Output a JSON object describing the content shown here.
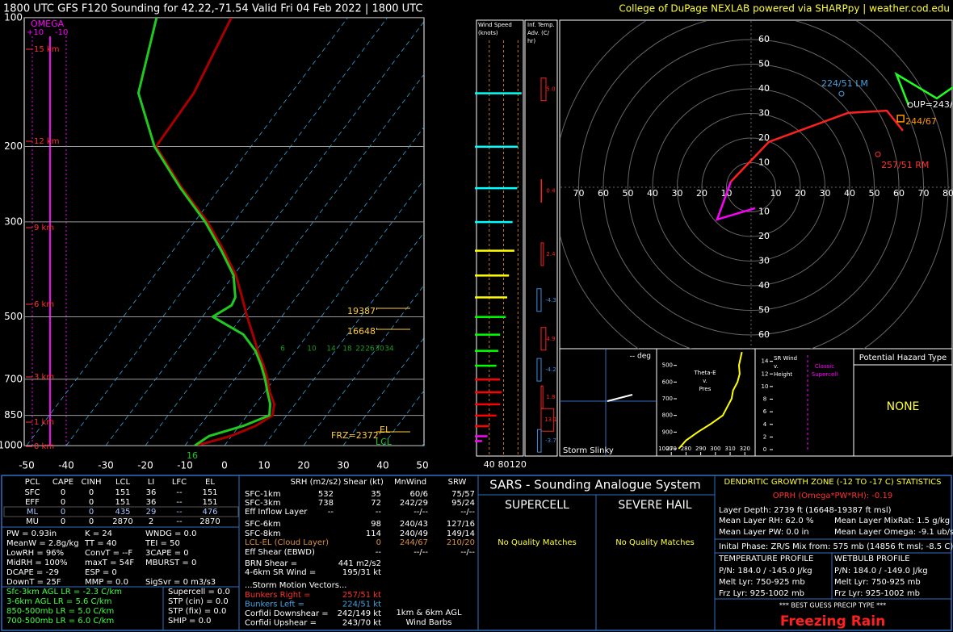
{
  "header": {
    "title": "1800 UTC GFS F120 Sounding for 42.22,-71.54 Valid  Fri 04 Feb 2022 | 1800 UTC",
    "credit": "College of DuPage NEXLAB powered via SHARPpy | weather.cod.edu"
  },
  "skewt": {
    "type": "skewt",
    "plim": [
      100,
      1000
    ],
    "pressure_ticks": [
      100,
      200,
      300,
      500,
      700,
      850,
      1000
    ],
    "tlim": [
      -50,
      50
    ],
    "temperature_ticks": [
      -50,
      -40,
      -30,
      -20,
      -10,
      0,
      10,
      20,
      30,
      40,
      50
    ],
    "omega_label": "OMEGA",
    "omega_ticks": [
      "+10",
      "-10"
    ],
    "height_labels": [
      "15 km",
      "12 km",
      "9 km",
      "6 km",
      "3 km",
      "1 km",
      "0 km"
    ],
    "mixing_ratio_labels": [
      6,
      10,
      14,
      18,
      22,
      26,
      30,
      34
    ],
    "temperature": {
      "color": "#a80000",
      "pressure": [
        1000,
        950,
        900,
        850,
        800,
        750,
        700,
        650,
        600,
        550,
        500,
        450,
        400,
        350,
        300,
        250,
        200,
        150,
        100
      ],
      "values": [
        -7.1,
        -0.2,
        4.1,
        6.4,
        4.7,
        1.3,
        -1.7,
        -5.3,
        -9.6,
        -13.9,
        -18.7,
        -23.7,
        -29.4,
        -37.2,
        -46.7,
        -59.6,
        -74.0,
        -74.6,
        -79.4
      ]
    },
    "dewpoint": {
      "color": "#20c820",
      "pressure": [
        1000,
        950,
        900,
        850,
        800,
        750,
        700,
        650,
        600,
        550,
        500,
        470,
        450,
        400,
        350,
        300,
        250,
        200,
        150,
        100
      ],
      "values": [
        -7.5,
        -5.7,
        1.0,
        5.6,
        3.7,
        0.7,
        -2.3,
        -5.9,
        -10.2,
        -16.3,
        -27.4,
        -24.8,
        -25.4,
        -30.0,
        -37.8,
        -47.3,
        -60.0,
        -74.4,
        -88.6,
        -98.3
      ]
    },
    "annotations": [
      "19387'",
      "16648'",
      "FRZ=2372'",
      "EL",
      "LCL"
    ],
    "surface_temperature": 16
  },
  "wind_speed": {
    "title": [
      "Wind Speed",
      "(knots)"
    ],
    "xlim": [
      0,
      135
    ],
    "ticks": [
      40,
      80,
      120
    ],
    "pressure": [
      150,
      200,
      250,
      300,
      350,
      400,
      450,
      500,
      550,
      600,
      650,
      700,
      750,
      800,
      850,
      900,
      950,
      975
    ],
    "speeds": [
      130,
      120,
      118,
      105,
      110,
      95,
      90,
      86,
      70,
      65,
      60,
      70,
      75,
      70,
      60,
      40,
      35,
      20
    ],
    "colors": [
      "#00ffff",
      "#00ffff",
      "#00ffff",
      "#00ffff",
      "#ffff00",
      "#ffff00",
      "#ffff00",
      "#00ff00",
      "#00ff00",
      "#00ff00",
      "#00ff00",
      "#ff0000",
      "#ff0000",
      "#ff0000",
      "#ff0000",
      "#ff0000",
      "#ff00ff",
      "#ff00ff"
    ]
  },
  "temp_advection": {
    "title": [
      "Inf. Temp.",
      "Adv. (C/",
      "hr)"
    ],
    "pressure": [
      147,
      254,
      357,
      457,
      563,
      665,
      771,
      871,
      975
    ],
    "values": [
      5.0,
      0.4,
      2.4,
      -4.3,
      4.9,
      -4.2,
      1.8,
      13.1,
      -3.7
    ],
    "value_labels": [
      "5.0",
      "0.4",
      "2.4",
      "-4.3",
      "4.9",
      "-4.2",
      "1.8",
      "13.1",
      "-3.7"
    ]
  },
  "hodograph": {
    "vticks": [
      10,
      20,
      30,
      40,
      50,
      60
    ],
    "hticks_left": [
      10,
      20,
      30,
      40,
      50,
      60,
      70
    ],
    "hticks_right": [
      10,
      20,
      30,
      40,
      50,
      60,
      70,
      80
    ],
    "segments": [
      {
        "color": "#ff00ff",
        "u": [
          1.6,
          -13.8,
          -8.2
        ],
        "v": [
          -8.5,
          -13.1,
          2.3
        ]
      },
      {
        "color": "#ff2020",
        "u": [
          -8.2,
          7.2,
          39.3,
          55.1,
          61.6
        ],
        "v": [
          2.3,
          18.4,
          30.2,
          31.1,
          23.0
        ]
      },
      {
        "color": "#20ff20",
        "u": [
          63.9,
          59.0,
          75.4,
          82.0
        ],
        "v": [
          33.4,
          45.9,
          36.1,
          40.7
        ]
      }
    ],
    "markers": [
      {
        "label": "224/51 LM",
        "color": "#4aa0e0",
        "u": 36.7,
        "v": 38.0
      },
      {
        "label": "UP=243/70",
        "color": "#ffffff",
        "u": 64.6,
        "v": 33.4
      },
      {
        "label": "244/67",
        "color": "#ff9900",
        "u": 60.7,
        "v": 27.9
      },
      {
        "label": "257/51 RM",
        "color": "#ff3030",
        "u": 51.5,
        "v": 13.4
      }
    ]
  },
  "slinky": {
    "deg": "-- deg",
    "title": "Storm Slinky"
  },
  "theta_e": {
    "title": [
      "Theta-E",
      "v.",
      "Pres"
    ],
    "plim": [
      400,
      1000
    ],
    "pticks": [
      500,
      600,
      700,
      800,
      900,
      1000
    ],
    "xlim": [
      260,
      327
    ],
    "xticks": [
      270,
      280,
      290,
      300,
      310,
      320
    ],
    "color": "#ffff00",
    "pressure": [
      420,
      500,
      550,
      600,
      650,
      700,
      750,
      800,
      850,
      900,
      950,
      1000
    ],
    "values": [
      318,
      316,
      316.5,
      315,
      312,
      311,
      308,
      305,
      297,
      288,
      280,
      275
    ]
  },
  "sr_wind": {
    "title": [
      "SR Wind",
      "v.",
      "Height"
    ],
    "ylim": [
      0,
      16
    ],
    "yticks": [
      0,
      2,
      4,
      6,
      8,
      10,
      12,
      14
    ],
    "note": [
      "Classic",
      "Supercell"
    ]
  },
  "hazard": {
    "title": "Potential Hazard Type",
    "value": "NONE"
  },
  "thermo": {
    "columns": [
      "PCL",
      "CAPE",
      "CINH",
      "LCL",
      "LI",
      "LFC",
      "EL"
    ],
    "rows": [
      [
        "SFC",
        0,
        0,
        151,
        36,
        "--",
        151
      ],
      [
        "EFF",
        0,
        0,
        151,
        36,
        "--",
        151
      ],
      [
        "ML",
        0,
        0,
        435,
        29,
        "--",
        476
      ],
      [
        "MU",
        0,
        0,
        2870,
        2,
        "--",
        2870
      ]
    ]
  },
  "indices": [
    [
      "PW = 0.93in",
      "K = 24",
      "WNDG = 0.0"
    ],
    [
      "MeanW = 2.8g/kg",
      "TT = 40",
      "TEI = 50"
    ],
    [
      "LowRH = 96%",
      "ConvT = --F",
      "3CAPE = 0"
    ],
    [
      "MidRH = 100%",
      "maxT = 54F",
      "MBURST = 0"
    ],
    [
      "DCAPE = -29",
      "ESP = 0"
    ],
    [
      "DownT = 25F",
      "MMP = 0.0",
      "SigSvr = 0 m3/s3"
    ]
  ],
  "lapse_rates": [
    "Sfc-3km AGL LR = -2.3 C/km",
    "3-6km AGL LR = 5.6 C/km",
    "850-500mb LR = 5.0 C/km",
    "700-500mb LR = 6.0 C/km"
  ],
  "composites": [
    "Supercell = 0.0",
    "STP (cin) = 0.0",
    "STP (fix) = 0.0",
    "SHIP = 0.0"
  ],
  "kinematics": {
    "columns": [
      "SRH (m2/s2)",
      "Shear (kt)",
      "MnWind",
      "SRW"
    ],
    "rows": [
      {
        "label": "SFC-1km",
        "srh": 532,
        "shear": 35,
        "mnwind": "60/6",
        "srw": "75/57"
      },
      {
        "label": "SFC-3km",
        "srh": 738,
        "shear": 72,
        "mnwind": "242/29",
        "srw": "95/24"
      },
      {
        "label": "Eff Inflow Layer",
        "srh": "--",
        "shear": "--",
        "mnwind": "--/--",
        "srw": "--/--"
      },
      {
        "label": "SFC-6km",
        "shear": 98,
        "mnwind": "240/43",
        "srw": "127/16"
      },
      {
        "label": "SFC-8km",
        "shear": 114,
        "mnwind": "240/49",
        "srw": "149/14"
      },
      {
        "label": "LCL-EL (Cloud Layer)",
        "shear": 0,
        "mnwind": "244/67",
        "srw": "210/20"
      },
      {
        "label": "Eff Shear (EBWD)",
        "shear": "--",
        "mnwind": "--/--",
        "srw": "--/--"
      }
    ],
    "brn": [
      [
        "BRN Shear =",
        "441 m2/s2"
      ],
      [
        "4-6km SR Wind =",
        "195/31 kt"
      ]
    ],
    "storm_motion_title": "...Storm Motion Vectors...",
    "storm_motion": [
      [
        "Bunkers Right =",
        "257/51 kt"
      ],
      [
        "Bunkers Left =",
        "224/51 kt"
      ],
      [
        "Corfidi Downshear =",
        "242/149 kt"
      ],
      [
        "Corfidi Upshear =",
        "243/70 kt"
      ]
    ],
    "caption": [
      "1km & 6km AGL",
      "Wind Barbs"
    ]
  },
  "sars": {
    "title": "SARS - Sounding Analogue System",
    "columns": [
      "SUPERCELL",
      "SEVERE HAIL"
    ],
    "results": [
      "No Quality Matches",
      "No Quality Matches"
    ]
  },
  "dgz": {
    "title": "DENDRITIC GROWTH ZONE (-12 TO -17 C) STATISTICS",
    "oprh": "OPRH (Omega*PW*RH): -0.19",
    "layer_depth": "Layer Depth: 2739 ft (16648-19387 ft msl)",
    "stats": [
      [
        "Mean Layer RH: 62.0 %",
        "Mean Layer MixRat: 1.5 g/kg"
      ],
      [
        "Mean Layer PW: 0.0 in",
        "Mean Layer Omega: -9.1 ub/s"
      ]
    ],
    "initial_phase": "Inital Phase: ZR/S Mix from: 575 mb (14856 ft msl; -8.5 C)",
    "profiles": [
      {
        "title": "TEMPERATURE PROFILE",
        "lines": [
          "P/N: 184.0 / -145.0 J/kg",
          "Melt Lyr: 750-925 mb",
          "Frz Lyr: 925-1002 mb"
        ]
      },
      {
        "title": "WETBULB PROFILE",
        "lines": [
          "P/N: 184.0 / -149.0 J/kg",
          "Melt Lyr: 750-925 mb",
          "Frz Lyr: 925-1002 mb"
        ]
      }
    ],
    "precip_title": "*** BEST GUESS PRECIP TYPE ***",
    "precip_type": "Freezing Rain"
  }
}
